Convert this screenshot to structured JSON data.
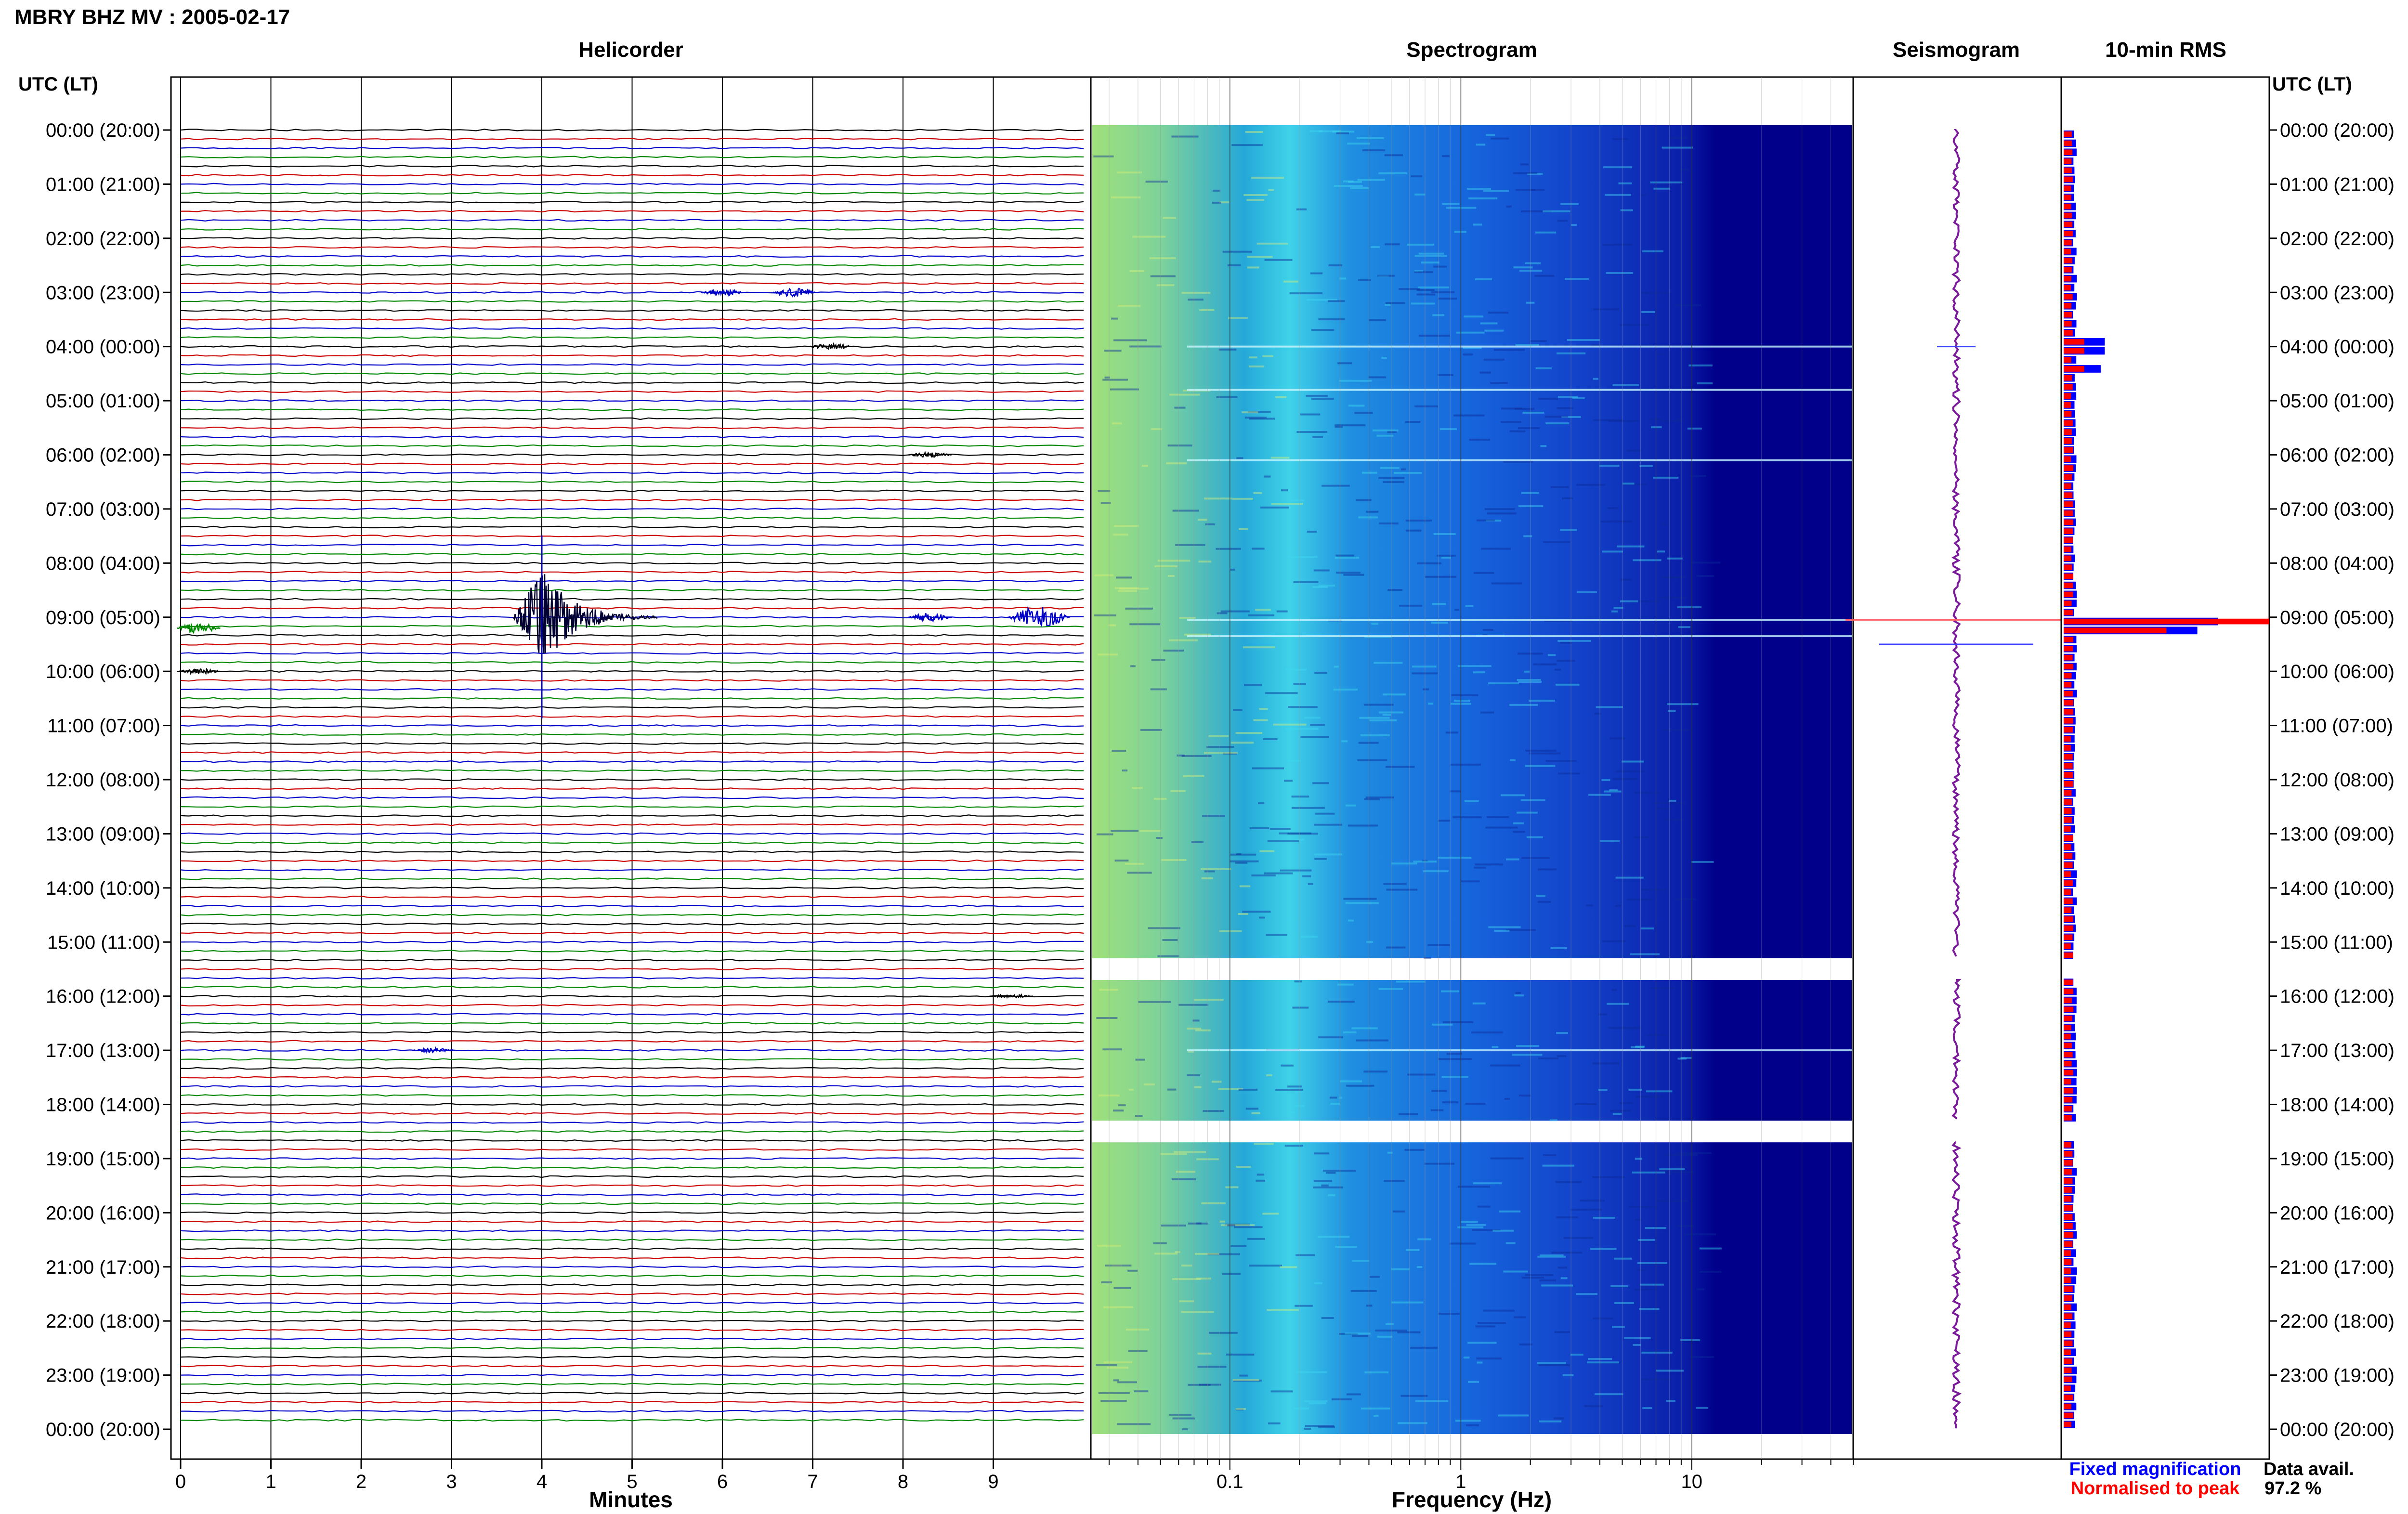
{
  "title": "MBRY BHZ MV : 2005-02-17",
  "panels": {
    "helicorder": "Helicorder",
    "spectrogram": "Spectrogram",
    "seismogram": "Seismogram",
    "rms": "10-min RMS"
  },
  "axis_header": "UTC (LT)",
  "time_labels": [
    "00:00 (20:00)",
    "01:00 (21:00)",
    "02:00 (22:00)",
    "03:00 (23:00)",
    "04:00 (00:00)",
    "05:00 (01:00)",
    "06:00 (02:00)",
    "07:00 (03:00)",
    "08:00 (04:00)",
    "09:00 (05:00)",
    "10:00 (06:00)",
    "11:00 (07:00)",
    "12:00 (08:00)",
    "13:00 (09:00)",
    "14:00 (10:00)",
    "15:00 (11:00)",
    "16:00 (12:00)",
    "17:00 (13:00)",
    "18:00 (14:00)",
    "19:00 (15:00)",
    "20:00 (16:00)",
    "21:00 (17:00)",
    "22:00 (18:00)",
    "23:00 (19:00)",
    "00:00 (20:00)"
  ],
  "legend": {
    "fixed": "Fixed magnification",
    "normalised": "Normalised to peak",
    "fixed_color": "#0000ff",
    "normalised_color": "#ff0000"
  },
  "data_avail": {
    "label": "Data avail.",
    "value": "97.2 %"
  },
  "chart_data": [
    {
      "type": "line",
      "panel": "helicorder",
      "xlabel": "Minutes",
      "x_ticks": [
        "0",
        "1",
        "2",
        "3",
        "4",
        "5",
        "6",
        "7",
        "8",
        "9"
      ],
      "xlim": [
        0,
        10
      ],
      "trace_colors": [
        "#000000",
        "#cc0000",
        "#0000cc",
        "#008800"
      ],
      "events": [
        {
          "hour": 3,
          "minute": 6.0,
          "amp": 0.4
        },
        {
          "hour": 3,
          "minute": 6.8,
          "amp": 0.5
        },
        {
          "hour": 4,
          "minute": 7.2,
          "amp": 0.35
        },
        {
          "hour": 6,
          "minute": 8.3,
          "amp": 0.3
        },
        {
          "hour": 9,
          "minute": 4.0,
          "amp": 6.0
        },
        {
          "hour": 9,
          "minute": 8.3,
          "amp": 0.5
        },
        {
          "hour": 9,
          "minute": 9.5,
          "amp": 1.2
        },
        {
          "hour": 9.2,
          "minute": 0.2,
          "amp": 0.6
        },
        {
          "hour": 10,
          "minute": 0.2,
          "amp": 0.3
        },
        {
          "hour": 16,
          "minute": 9.2,
          "amp": 0.2
        },
        {
          "hour": 17,
          "minute": 2.8,
          "amp": 0.25
        }
      ]
    },
    {
      "type": "heatmap",
      "panel": "spectrogram",
      "xlabel": "Frequency (Hz)",
      "x_scale": "log",
      "xlim": [
        0.025,
        50
      ],
      "x_ticks": [
        0.1,
        1,
        10
      ],
      "x_tick_labels": [
        "0.1",
        "1",
        "10"
      ],
      "gaps_hours": [
        [
          15.3,
          15.7
        ],
        [
          18.3,
          18.7
        ]
      ]
    },
    {
      "type": "line",
      "panel": "seismogram",
      "spikes_hours": [
        4.0,
        9.05,
        9.5
      ],
      "gaps_hours": [
        [
          15.3,
          15.7
        ],
        [
          18.3,
          18.7
        ]
      ]
    },
    {
      "type": "bar",
      "panel": "rms",
      "orientation": "horizontal",
      "series": [
        {
          "name": "Fixed magnification",
          "color": "#0000ff"
        },
        {
          "name": "Normalised to peak",
          "color": "#ff0000"
        }
      ],
      "peaks": [
        {
          "hour": 9.05,
          "normalised": 1.0,
          "fixed": 0.75
        },
        {
          "hour": 9.2,
          "normalised": 0.5,
          "fixed": 0.65
        },
        {
          "hour": 9.3,
          "normalised": 0.2,
          "fixed": 0.3
        },
        {
          "hour": 4.0,
          "normalised": 0.1,
          "fixed": 0.2
        },
        {
          "hour": 4.4,
          "normalised": 0.1,
          "fixed": 0.18
        }
      ],
      "gaps_hours": [
        [
          15.3,
          15.7
        ],
        [
          18.3,
          18.7
        ]
      ]
    }
  ]
}
